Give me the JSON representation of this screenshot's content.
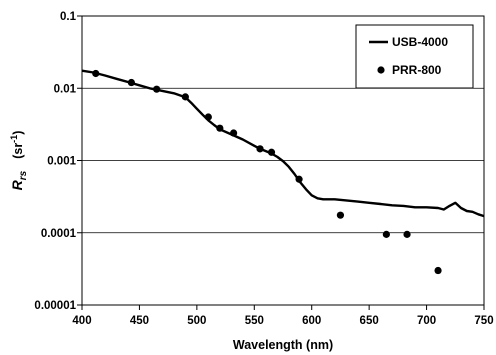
{
  "chart_data": {
    "type": "line",
    "title": "",
    "xlabel": "Wavelength  (nm)",
    "ylabel": {
      "symbol": "R",
      "subscript": "rs",
      "unit_open": "(sr",
      "unit_sup": "-1",
      "unit_close": ")"
    },
    "xlim": [
      400,
      750
    ],
    "ylim": [
      1e-05,
      0.1
    ],
    "yscale": "log",
    "x_ticks": [
      400,
      450,
      500,
      550,
      600,
      650,
      700,
      750
    ],
    "x_tick_labels": [
      "400",
      "450",
      "500",
      "550",
      "600",
      "650",
      "700",
      "750"
    ],
    "y_ticks": [
      1e-05,
      0.0001,
      0.001,
      0.01,
      0.1
    ],
    "y_tick_labels": [
      "0.00001",
      "0.0001",
      "0.001",
      "0.01",
      "0.1"
    ],
    "grid": "horizontal",
    "legend_position": "top-right",
    "series": [
      {
        "name": "USB-4000",
        "type": "line",
        "x": [
          400,
          410,
          420,
          430,
          440,
          450,
          460,
          470,
          480,
          490,
          495,
          500,
          505,
          510,
          515,
          520,
          530,
          540,
          550,
          555,
          560,
          565,
          570,
          575,
          580,
          585,
          590,
          595,
          600,
          605,
          610,
          620,
          630,
          640,
          650,
          660,
          670,
          680,
          690,
          700,
          710,
          715,
          720,
          725,
          730,
          735,
          740,
          745,
          750
        ],
        "y": [
          0.0175,
          0.0165,
          0.015,
          0.0135,
          0.0122,
          0.011,
          0.0099,
          0.0092,
          0.0085,
          0.0075,
          0.0063,
          0.0052,
          0.0043,
          0.0036,
          0.0031,
          0.0027,
          0.0023,
          0.00195,
          0.0016,
          0.00145,
          0.00135,
          0.00125,
          0.00112,
          0.00098,
          0.00082,
          0.00065,
          0.0005,
          0.0004,
          0.00033,
          0.0003,
          0.00029,
          0.00029,
          0.00028,
          0.00027,
          0.00026,
          0.00025,
          0.00024,
          0.000235,
          0.000225,
          0.000225,
          0.00022,
          0.00021,
          0.000235,
          0.00026,
          0.00022,
          0.0002,
          0.000195,
          0.00018,
          0.00017
        ]
      },
      {
        "name": "PRR-800",
        "type": "scatter",
        "x": [
          412,
          443,
          465,
          490,
          510,
          520,
          532,
          555,
          565,
          589,
          625,
          665,
          683,
          710
        ],
        "y": [
          0.016,
          0.012,
          0.0097,
          0.0076,
          0.004,
          0.0028,
          0.0024,
          0.00145,
          0.0013,
          0.00055,
          0.000175,
          9.5e-05,
          9.5e-05,
          3e-05
        ]
      }
    ]
  }
}
